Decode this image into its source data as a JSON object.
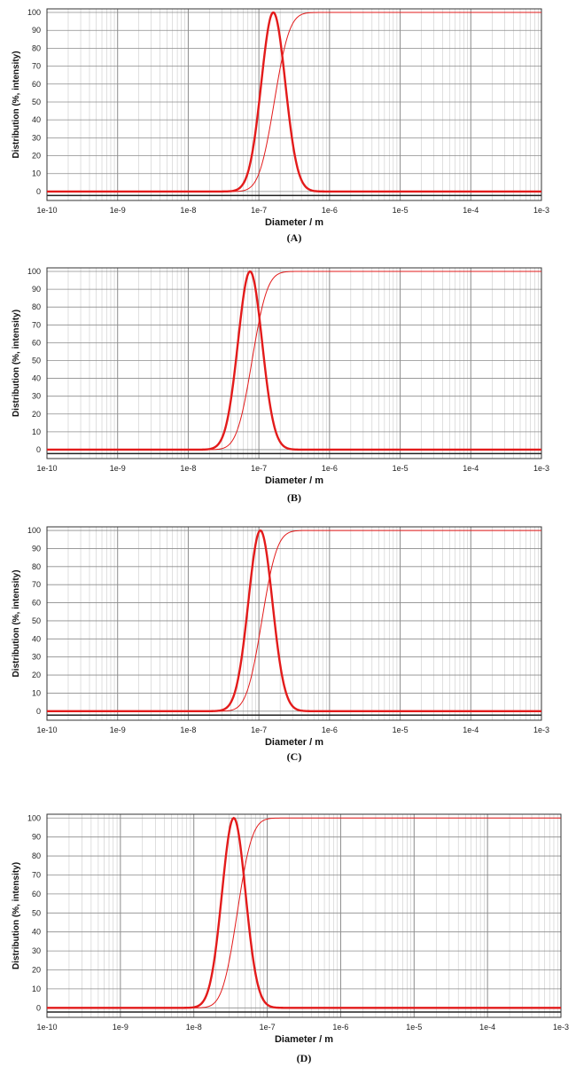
{
  "colors": {
    "curve": "#e31b1b",
    "grid": "#8c8c8c",
    "frame": "#333333",
    "baseline": "#222222"
  },
  "chart_data": [
    {
      "panel": "A",
      "type": "line",
      "caption": "(A)",
      "xlabel": "Diameter / m",
      "ylabel": "Distribution (%, intensity)",
      "xscale": "log",
      "xlim": [
        1e-10,
        0.001
      ],
      "xticks": [
        "1e-10",
        "1e-9",
        "1e-8",
        "1e-7",
        "1e-6",
        "1e-5",
        "1e-4",
        "1e-3"
      ],
      "ylim": [
        -5,
        102
      ],
      "yticks": [
        "0",
        "10",
        "20",
        "30",
        "40",
        "50",
        "60",
        "70",
        "80",
        "90",
        "100"
      ],
      "grid": true,
      "series": [
        {
          "name": "distribution",
          "style": "bold",
          "peak_diameter": 1.6e-07,
          "log_sigma": 0.17,
          "peak_value": 100
        },
        {
          "name": "cumulative",
          "style": "thin",
          "median_diameter": 1.65e-07,
          "log_sigma": 0.17,
          "max_value": 100
        }
      ]
    },
    {
      "panel": "B",
      "type": "line",
      "caption": "(B)",
      "xlabel": "Diameter / m",
      "ylabel": "Distribution (%, intensity)",
      "xscale": "log",
      "xlim": [
        1e-10,
        0.001
      ],
      "xticks": [
        "1e-10",
        "1e-9",
        "1e-8",
        "1e-7",
        "1e-6",
        "1e-5",
        "1e-4",
        "1e-3"
      ],
      "ylim": [
        -5,
        102
      ],
      "yticks": [
        "0",
        "10",
        "20",
        "30",
        "40",
        "50",
        "60",
        "70",
        "80",
        "90",
        "100"
      ],
      "grid": true,
      "series": [
        {
          "name": "distribution",
          "style": "bold",
          "peak_diameter": 7.5e-08,
          "log_sigma": 0.17,
          "peak_value": 100
        },
        {
          "name": "cumulative",
          "style": "thin",
          "median_diameter": 8e-08,
          "log_sigma": 0.17,
          "max_value": 100
        }
      ]
    },
    {
      "panel": "C",
      "type": "line",
      "caption": "(C)",
      "xlabel": "Diameter / m",
      "ylabel": "Distribution (%, intensity)",
      "xscale": "log",
      "xlim": [
        1e-10,
        0.001
      ],
      "xticks": [
        "1e-10",
        "1e-9",
        "1e-8",
        "1e-7",
        "1e-6",
        "1e-5",
        "1e-4",
        "1e-3"
      ],
      "ylim": [
        -5,
        102
      ],
      "yticks": [
        "0",
        "10",
        "20",
        "30",
        "40",
        "50",
        "60",
        "70",
        "80",
        "90",
        "100"
      ],
      "grid": true,
      "series": [
        {
          "name": "distribution",
          "style": "bold",
          "peak_diameter": 1.05e-07,
          "log_sigma": 0.17,
          "peak_value": 100
        },
        {
          "name": "cumulative",
          "style": "thin",
          "median_diameter": 1.1e-07,
          "log_sigma": 0.17,
          "max_value": 100
        }
      ]
    },
    {
      "panel": "D",
      "type": "line",
      "caption": "(D)",
      "xlabel": "Diameter / m",
      "ylabel": "Distribution (%, intensity)",
      "xscale": "log",
      "xlim": [
        1e-10,
        0.001
      ],
      "xticks": [
        "1e-10",
        "1e-9",
        "1e-8",
        "1e-7",
        "1e-6",
        "1e-5",
        "1e-4",
        "1e-3"
      ],
      "ylim": [
        -5,
        102
      ],
      "yticks": [
        "0",
        "10",
        "20",
        "30",
        "40",
        "50",
        "60",
        "70",
        "80",
        "90",
        "100"
      ],
      "grid": true,
      "series": [
        {
          "name": "distribution",
          "style": "bold",
          "peak_diameter": 3.5e-08,
          "log_sigma": 0.16,
          "peak_value": 100
        },
        {
          "name": "cumulative",
          "style": "thin",
          "median_diameter": 3.9e-08,
          "log_sigma": 0.16,
          "max_value": 100
        }
      ]
    }
  ]
}
